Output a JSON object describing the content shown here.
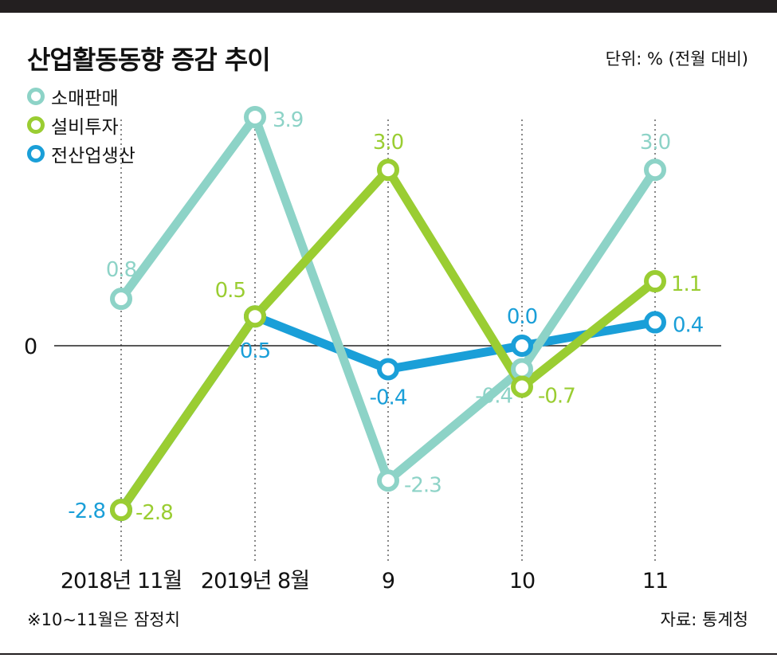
{
  "header": {
    "title": "산업활동동향 증감 추이",
    "unit": "단위: % (전월 대비)"
  },
  "footer": {
    "note": "※10~11월은 잠정치",
    "source": "자료: 통계청"
  },
  "chart_data": {
    "type": "line",
    "categories": [
      "2018년 11월",
      "2019년 8월",
      "9",
      "10",
      "11"
    ],
    "zero_label": "0",
    "ylim": [
      -4,
      4.4
    ],
    "series": [
      {
        "name": "소매판매",
        "color": "#8dd3c7",
        "values": [
          0.8,
          3.9,
          -2.3,
          -0.4,
          3.0
        ],
        "labels": [
          "0.8",
          "3.9",
          "-2.3",
          "-0.4",
          "3.0"
        ]
      },
      {
        "name": "설비투자",
        "color": "#9acd32",
        "values": [
          -2.8,
          0.5,
          3.0,
          -0.7,
          1.1
        ],
        "labels": [
          "-2.8",
          "0.5",
          "3.0",
          "-0.7",
          "1.1"
        ]
      },
      {
        "name": "전산업생산",
        "color": "#1a9fd8",
        "values": [
          -2.8,
          0.5,
          -0.4,
          0.0,
          0.4
        ],
        "labels": [
          "-2.8",
          "0.5",
          "-0.4",
          "0.0",
          "0.4"
        ]
      }
    ]
  }
}
